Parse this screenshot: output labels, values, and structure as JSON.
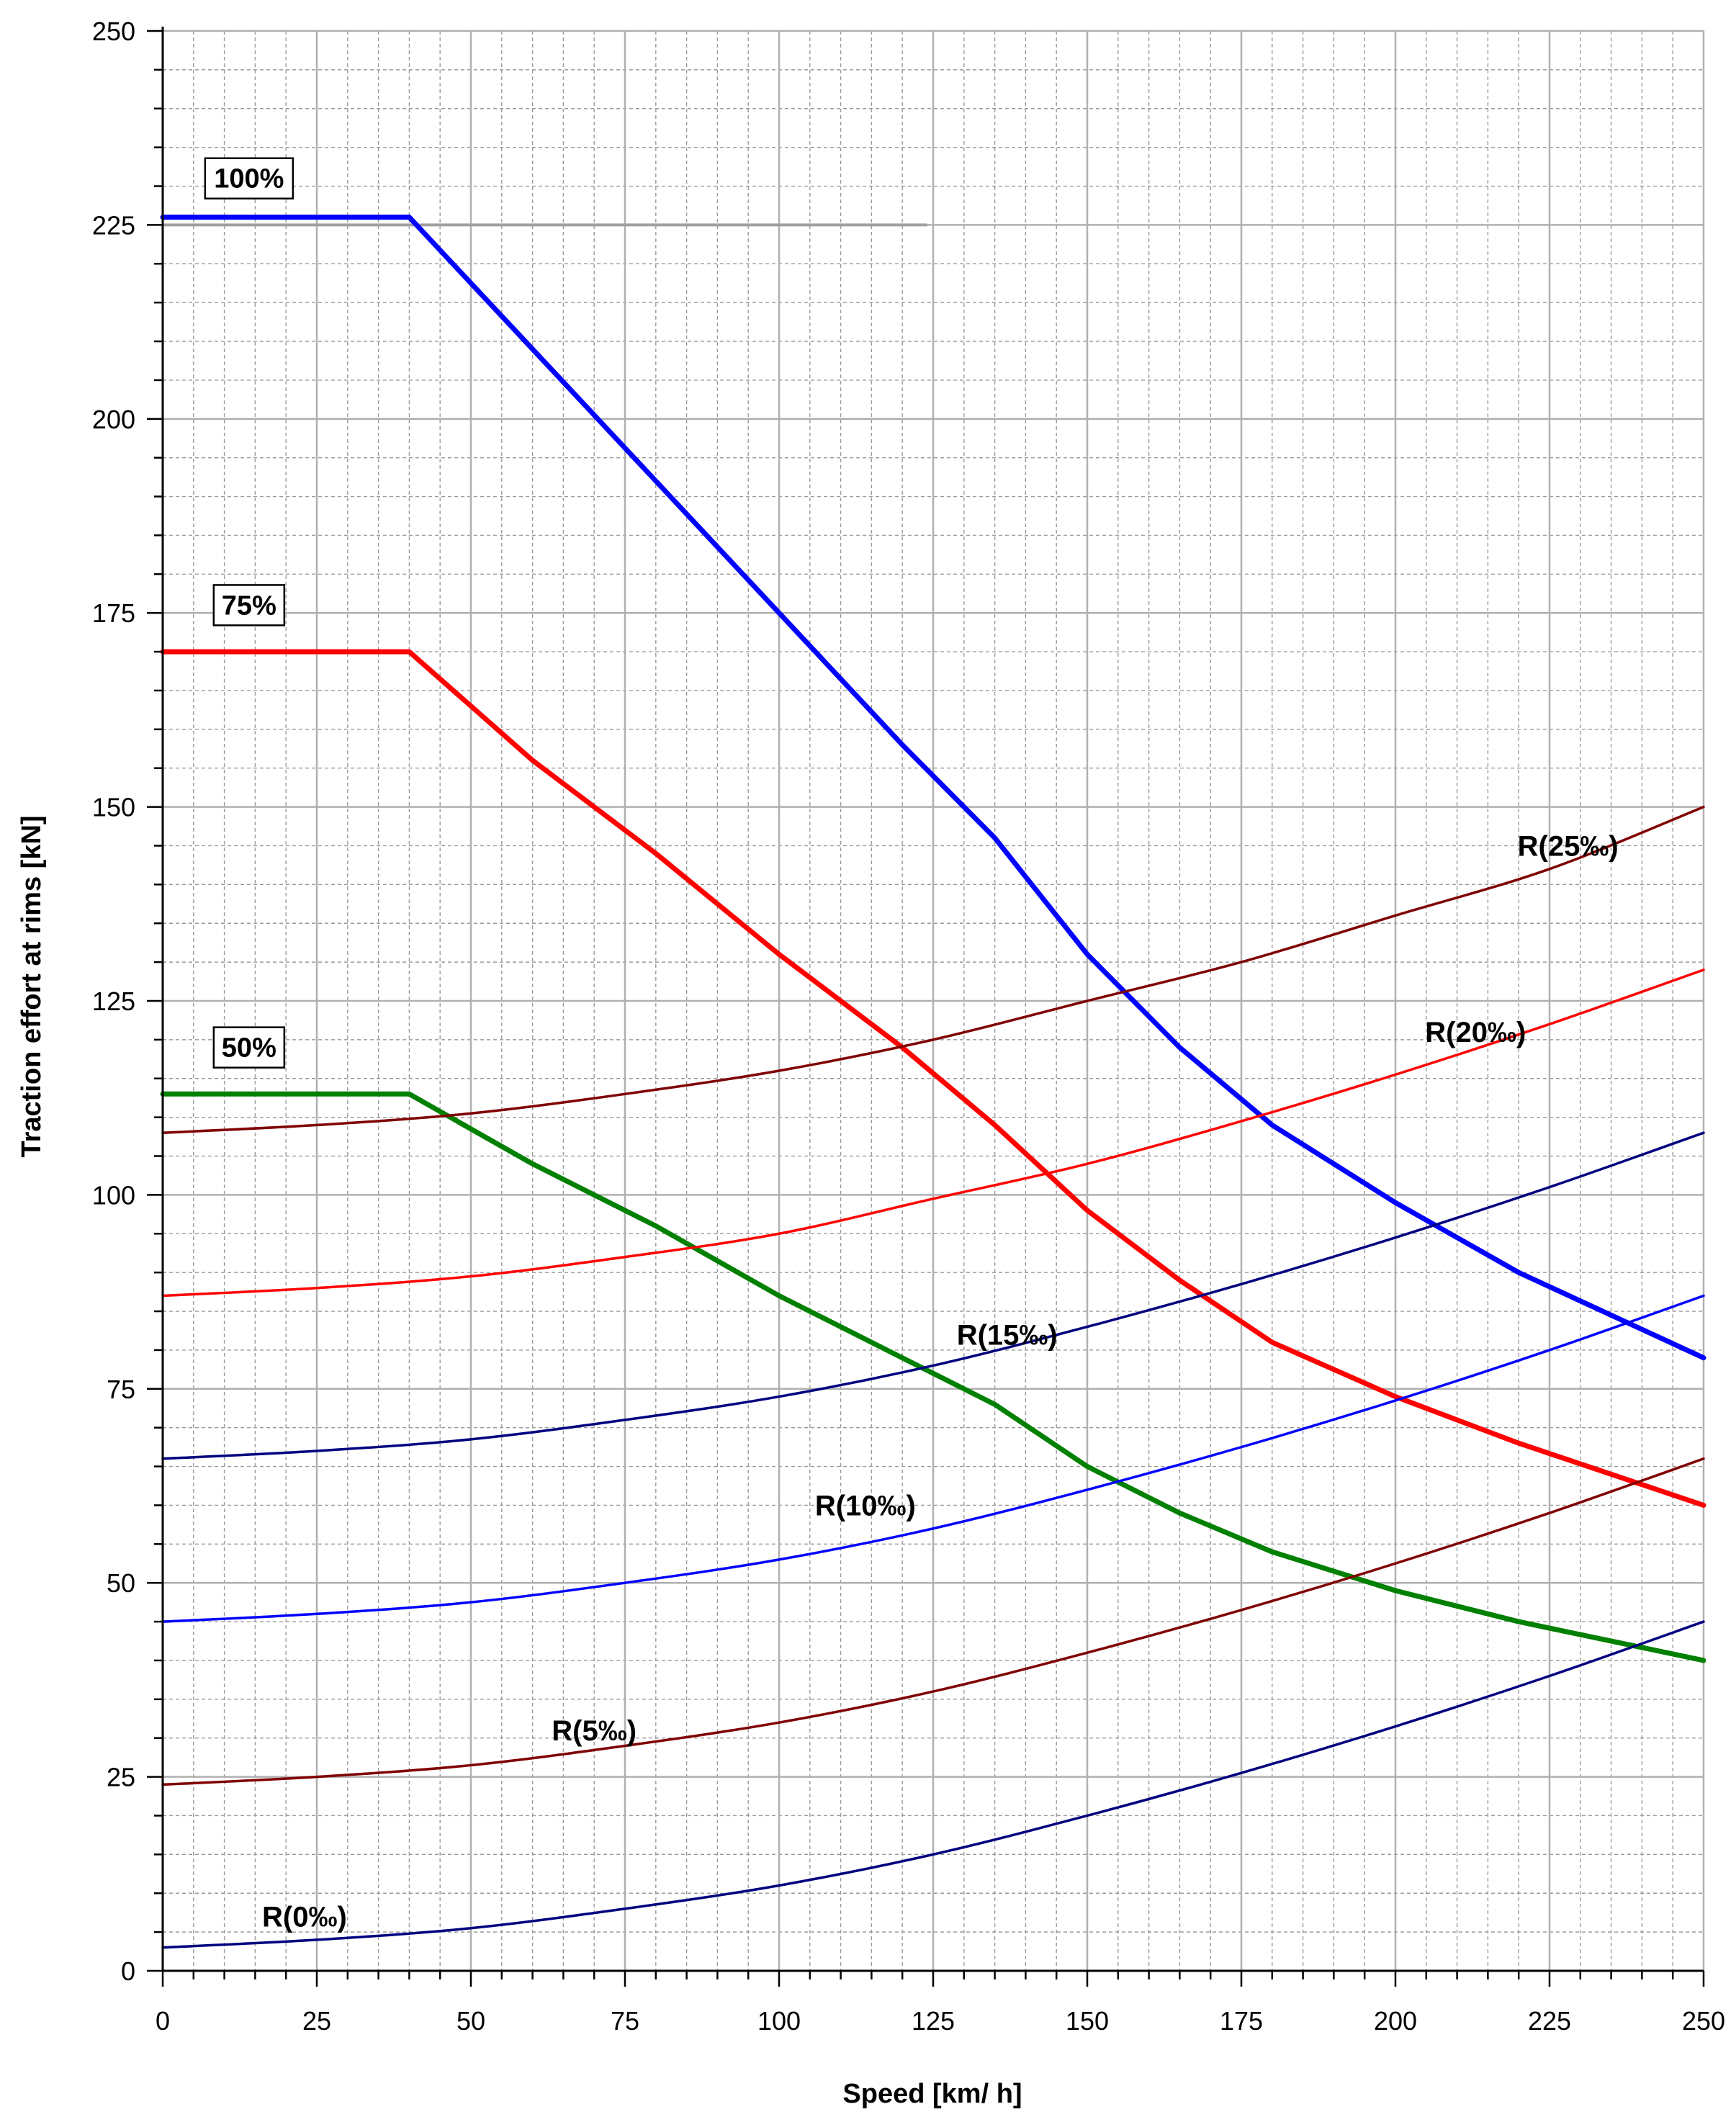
{
  "chart_data": {
    "type": "line",
    "title": "",
    "xlabel": "Speed  [km/ h]",
    "ylabel": "Traction effort at rims  [kN]",
    "xlim": [
      0,
      250
    ],
    "ylim": [
      0,
      250
    ],
    "xticks": [
      0,
      25,
      50,
      75,
      100,
      125,
      150,
      175,
      200,
      225,
      250
    ],
    "yticks": [
      0,
      25,
      50,
      75,
      100,
      125,
      150,
      175,
      200,
      225,
      250
    ],
    "grid": true,
    "series": [
      {
        "name": "100%",
        "kind": "traction",
        "color": "#0000ff",
        "x": [
          0,
          40,
          60,
          80,
          100,
          120,
          135,
          150,
          165,
          180,
          200,
          220,
          250
        ],
        "y": [
          226,
          226,
          209,
          192,
          175,
          158,
          146,
          131,
          119,
          109,
          99,
          90,
          79
        ]
      },
      {
        "name": "75%",
        "kind": "traction",
        "color": "#ff0000",
        "x": [
          0,
          40,
          60,
          80,
          100,
          120,
          135,
          150,
          165,
          180,
          200,
          220,
          250
        ],
        "y": [
          170,
          170,
          156,
          144,
          131,
          119,
          109,
          98,
          89,
          81,
          74,
          68,
          60
        ]
      },
      {
        "name": "50%",
        "kind": "traction",
        "color": "#008000",
        "x": [
          0,
          40,
          60,
          80,
          100,
          120,
          135,
          150,
          165,
          180,
          200,
          220,
          250
        ],
        "y": [
          113,
          113,
          104,
          96,
          87,
          79,
          73,
          65,
          59,
          54,
          49,
          45,
          40
        ]
      },
      {
        "name": "R(25‰)",
        "kind": "resistance",
        "color": "#800000",
        "x": [
          0,
          25,
          50,
          75,
          100,
          125,
          150,
          175,
          200,
          225,
          250
        ],
        "y": [
          108,
          109,
          110.5,
          113,
          116,
          120,
          125,
          130,
          136,
          142,
          150
        ]
      },
      {
        "name": "R(20‰)",
        "kind": "resistance",
        "color": "#ff0000",
        "x": [
          0,
          25,
          50,
          75,
          100,
          125,
          150,
          175,
          200,
          225,
          250
        ],
        "y": [
          87,
          88,
          89.5,
          92,
          95,
          99.5,
          104,
          109.5,
          115.5,
          122,
          129
        ]
      },
      {
        "name": "R(15‰)",
        "kind": "resistance",
        "color": "#000080",
        "x": [
          0,
          25,
          50,
          75,
          100,
          125,
          150,
          175,
          200,
          225,
          250
        ],
        "y": [
          66,
          67,
          68.5,
          71,
          74,
          78,
          83,
          88.5,
          94.5,
          101,
          108
        ]
      },
      {
        "name": "R(10‰)",
        "kind": "resistance",
        "color": "#0000ff",
        "x": [
          0,
          25,
          50,
          75,
          100,
          125,
          150,
          175,
          200,
          225,
          250
        ],
        "y": [
          45,
          46,
          47.5,
          50,
          53,
          57,
          62,
          67.5,
          73.5,
          80,
          87
        ]
      },
      {
        "name": "R(5‰)",
        "kind": "resistance",
        "color": "#800000",
        "x": [
          0,
          25,
          50,
          75,
          100,
          125,
          150,
          175,
          200,
          225,
          250
        ],
        "y": [
          24,
          25,
          26.5,
          29,
          32,
          36,
          41,
          46.5,
          52.5,
          59,
          66
        ]
      },
      {
        "name": "R(0‰)",
        "kind": "resistance",
        "color": "#000080",
        "x": [
          0,
          25,
          50,
          75,
          100,
          125,
          150,
          175,
          200,
          225,
          250
        ],
        "y": [
          3,
          4,
          5.5,
          8,
          11,
          15,
          20,
          25.5,
          31.5,
          38,
          45
        ]
      }
    ],
    "annotations": [
      {
        "text": "100%",
        "x": 14,
        "y": 231,
        "boxed": true
      },
      {
        "text": "75%",
        "x": 14,
        "y": 176,
        "boxed": true
      },
      {
        "text": "50%",
        "x": 14,
        "y": 119,
        "boxed": true
      },
      {
        "text": "R(25‰)",
        "x": 228,
        "y": 145,
        "boxed": false
      },
      {
        "text": "R(20‰)",
        "x": 213,
        "y": 121,
        "boxed": false
      },
      {
        "text": "R(15‰)",
        "x": 137,
        "y": 82,
        "boxed": false
      },
      {
        "text": "R(10‰)",
        "x": 114,
        "y": 60,
        "boxed": false
      },
      {
        "text": "R(5‰)",
        "x": 70,
        "y": 31,
        "boxed": false
      },
      {
        "text": "R(0‰)",
        "x": 23,
        "y": 7,
        "boxed": false
      }
    ],
    "reference_line": {
      "y": 225,
      "x": [
        0,
        124
      ],
      "color": "#a0a0a0"
    }
  }
}
